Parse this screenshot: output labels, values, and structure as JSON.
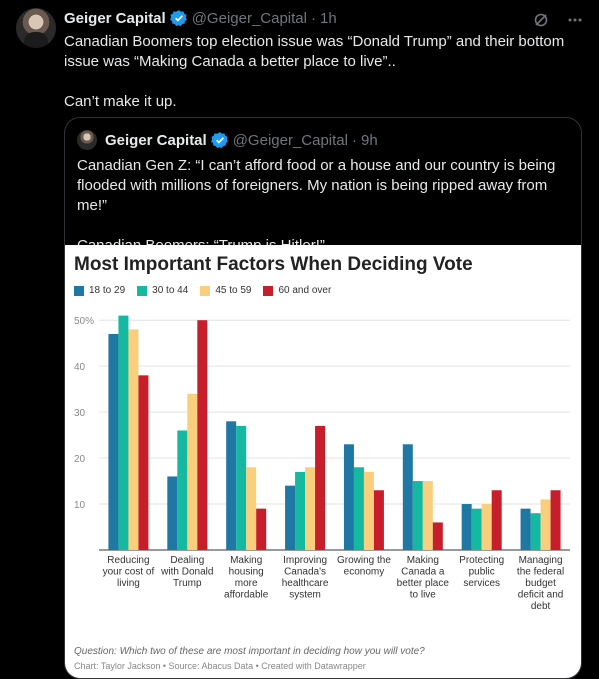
{
  "tweet": {
    "author_name": "Geiger Capital",
    "handle": "@Geiger_Capital",
    "separator": "·",
    "time": "1h",
    "text": "Canadian Boomers top election issue was “Donald Trump” and their bottom issue was “Making Canada a better place to live”..\n\nCan’t make it up.",
    "icons": [
      "grok-icon",
      "more-icon"
    ]
  },
  "quoted": {
    "author_name": "Geiger Capital",
    "handle": "@Geiger_Capital",
    "separator": "·",
    "time": "9h",
    "text": "Canadian Gen Z: “I can’t afford food or a house and our country is being flooded with millions of foreigners. My nation is being ripped away from me!”\n\nCanadian Boomers: “Trump is Hitler!”"
  },
  "colors": {
    "verified": "#1d9bf0",
    "s1": "#1f77a4",
    "s2": "#15b8a0",
    "s3": "#f9cf7e",
    "s4": "#c71e2b"
  },
  "chart_data": {
    "type": "bar",
    "title": "Most Important Factors When Deciding Vote",
    "categories": [
      "Reducing your cost of living",
      "Dealing with Donald Trump",
      "Making housing more affordable",
      "Improving Canada's healthcare system",
      "Growing the economy",
      "Making Canada a better place to live",
      "Protecting public services",
      "Managing the federal budget deficit and debt"
    ],
    "category_lines": [
      [
        "Reducing",
        "your cost of",
        "living"
      ],
      [
        "Dealing",
        "with Donald",
        "Trump"
      ],
      [
        "Making",
        "housing",
        "more",
        "affordable"
      ],
      [
        "Improving",
        "Canada's",
        "healthcare",
        "system"
      ],
      [
        "Growing the",
        "economy"
      ],
      [
        "Making",
        "Canada a",
        "better place",
        "to live"
      ],
      [
        "Protecting",
        "public",
        "services"
      ],
      [
        "Managing",
        "the federal",
        "budget",
        "deficit and",
        "debt"
      ]
    ],
    "series": [
      {
        "name": "18 to 29",
        "values": [
          47,
          16,
          28,
          14,
          23,
          23,
          10,
          9
        ]
      },
      {
        "name": "30 to 44",
        "values": [
          51,
          26,
          27,
          17,
          18,
          15,
          9,
          8
        ]
      },
      {
        "name": "45 to 59",
        "values": [
          48,
          34,
          18,
          18,
          17,
          15,
          10,
          11
        ]
      },
      {
        "name": "60 and over",
        "values": [
          38,
          50,
          9,
          27,
          13,
          6,
          13,
          13
        ]
      }
    ],
    "yticks": [
      "50%",
      "40",
      "30",
      "20",
      "10"
    ],
    "ytick_values": [
      50,
      40,
      30,
      20,
      10
    ],
    "ylim": [
      0,
      52
    ],
    "grid": true,
    "legend": "top-left",
    "question": "Question: Which two of these are most important in deciding how you will vote?",
    "credit": "Chart: Taylor Jackson • Source: Abacus Data • Created with Datawrapper"
  }
}
